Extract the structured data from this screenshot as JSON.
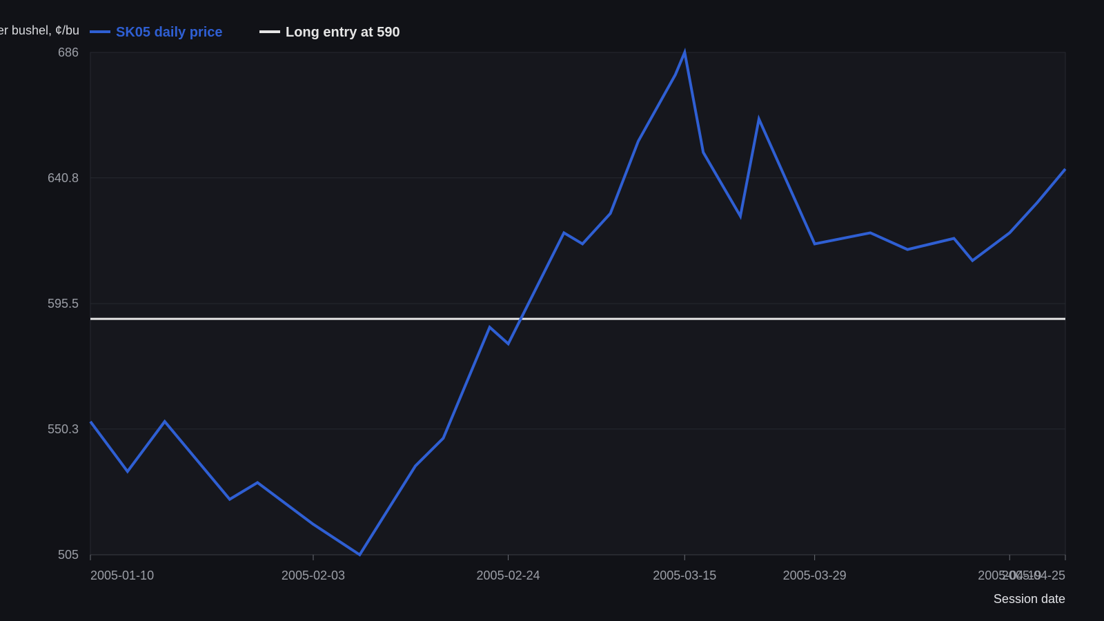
{
  "chart_data": {
    "type": "line",
    "title": "",
    "ylabel": "Price per bushel, ¢/bu",
    "xlabel": "Session date",
    "ylim": [
      505,
      686
    ],
    "yticks": [
      "505",
      "550.3",
      "595.5",
      "640.8",
      "686"
    ],
    "xticks": [
      {
        "label": "2005-01-10",
        "date": "2005-01-10"
      },
      {
        "label": "2005-02-03",
        "date": "2005-02-03"
      },
      {
        "label": "2005-02-24",
        "date": "2005-02-24"
      },
      {
        "label": "2005-03-15",
        "date": "2005-03-15"
      },
      {
        "label": "2005-03-29",
        "date": "2005-03-29"
      },
      {
        "label": "2005-04-19",
        "date": "2005-04-19"
      },
      {
        "label": "2005-04-25",
        "date": "2005-04-25"
      }
    ],
    "grid": true,
    "legend_position": "top-left",
    "series": [
      {
        "name": "SK05 daily price",
        "color": "#2f5fd3",
        "points": [
          {
            "x": "2005-01-10",
            "y": 553
          },
          {
            "x": "2005-01-14",
            "y": 535
          },
          {
            "x": "2005-01-18",
            "y": 553
          },
          {
            "x": "2005-01-25",
            "y": 525
          },
          {
            "x": "2005-01-28",
            "y": 531
          },
          {
            "x": "2005-02-03",
            "y": 516
          },
          {
            "x": "2005-02-08",
            "y": 505
          },
          {
            "x": "2005-02-14",
            "y": 537
          },
          {
            "x": "2005-02-17",
            "y": 547
          },
          {
            "x": "2005-02-22",
            "y": 587
          },
          {
            "x": "2005-02-24",
            "y": 581
          },
          {
            "x": "2005-03-02",
            "y": 621
          },
          {
            "x": "2005-03-04",
            "y": 617
          },
          {
            "x": "2005-03-07",
            "y": 628
          },
          {
            "x": "2005-03-10",
            "y": 654
          },
          {
            "x": "2005-03-14",
            "y": 678
          },
          {
            "x": "2005-03-15",
            "y": 686
          },
          {
            "x": "2005-03-17",
            "y": 650
          },
          {
            "x": "2005-03-21",
            "y": 627
          },
          {
            "x": "2005-03-23",
            "y": 662
          },
          {
            "x": "2005-03-29",
            "y": 617
          },
          {
            "x": "2005-04-04",
            "y": 621
          },
          {
            "x": "2005-04-08",
            "y": 615
          },
          {
            "x": "2005-04-13",
            "y": 619
          },
          {
            "x": "2005-04-15",
            "y": 611
          },
          {
            "x": "2005-04-19",
            "y": 621
          },
          {
            "x": "2005-04-22",
            "y": 632
          },
          {
            "x": "2005-04-25",
            "y": 644
          }
        ]
      },
      {
        "name": "Long entry at 590",
        "color": "#e6e6e6",
        "points": [
          {
            "x": "2005-01-10",
            "y": 590
          },
          {
            "x": "2005-04-25",
            "y": 590
          }
        ]
      }
    ]
  }
}
